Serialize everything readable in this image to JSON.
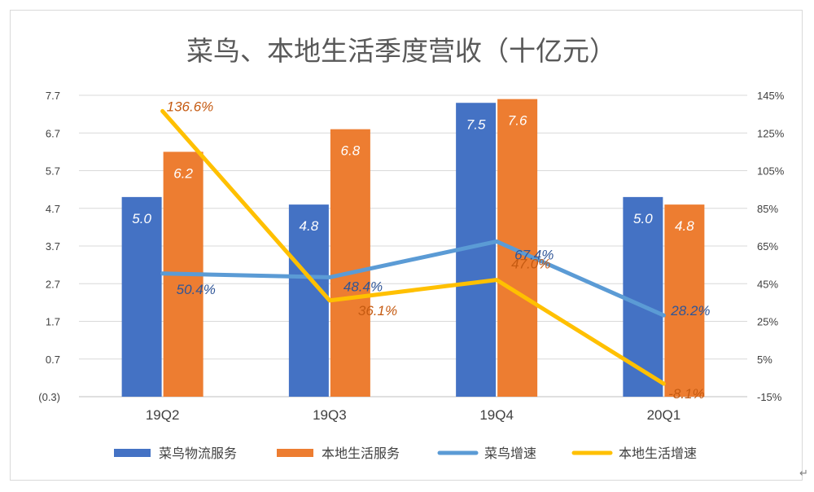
{
  "chart_data": {
    "type": "bar",
    "title": "菜鸟、本地生活季度营收（十亿元）",
    "categories": [
      "19Q2",
      "19Q3",
      "19Q4",
      "20Q1"
    ],
    "series": [
      {
        "name": "菜鸟物流服务",
        "kind": "bar",
        "axis": "left",
        "color": "#4472c4",
        "label_color": "#ffffff",
        "values": [
          5.0,
          4.8,
          7.5,
          5.0
        ],
        "labels": [
          "5.0",
          "4.8",
          "7.5",
          "5.0"
        ]
      },
      {
        "name": "本地生活服务",
        "kind": "bar",
        "axis": "left",
        "color": "#ed7d31",
        "label_color": "#ffffff",
        "values": [
          6.2,
          6.8,
          7.6,
          4.8
        ],
        "labels": [
          "6.2",
          "6.8",
          "7.6",
          "4.8"
        ]
      },
      {
        "name": "菜鸟增速",
        "kind": "line",
        "axis": "right",
        "color": "#5b9bd5",
        "label_color": "#2f5597",
        "values": [
          50.4,
          48.4,
          67.4,
          28.2
        ],
        "labels": [
          "50.4%",
          "48.4%",
          "67.4%",
          "28.2%"
        ]
      },
      {
        "name": "本地生活增速",
        "kind": "line",
        "axis": "right",
        "color": "#ffc000",
        "label_color": "#c55a11",
        "values": [
          136.6,
          36.1,
          47.0,
          -8.1
        ],
        "labels": [
          "136.6%",
          "36.1%",
          "47.0%",
          "-8.1%"
        ]
      }
    ],
    "left_axis": {
      "ylim": [
        -0.3,
        7.7
      ],
      "ticks": [
        -0.3,
        0.7,
        1.7,
        2.7,
        3.7,
        4.7,
        5.7,
        6.7,
        7.7
      ],
      "tick_labels": [
        "(0.3)",
        "0.7",
        "1.7",
        "2.7",
        "3.7",
        "4.7",
        "5.7",
        "6.7",
        "7.7"
      ]
    },
    "right_axis": {
      "ylim": [
        -15,
        145
      ],
      "ticks": [
        -15,
        5,
        25,
        45,
        65,
        85,
        105,
        125,
        145
      ],
      "tick_labels": [
        "-15%",
        "5%",
        "25%",
        "45%",
        "65%",
        "85%",
        "105%",
        "125%",
        "145%"
      ]
    },
    "grid": true,
    "legend": "bottom"
  },
  "corner_mark": "↵"
}
